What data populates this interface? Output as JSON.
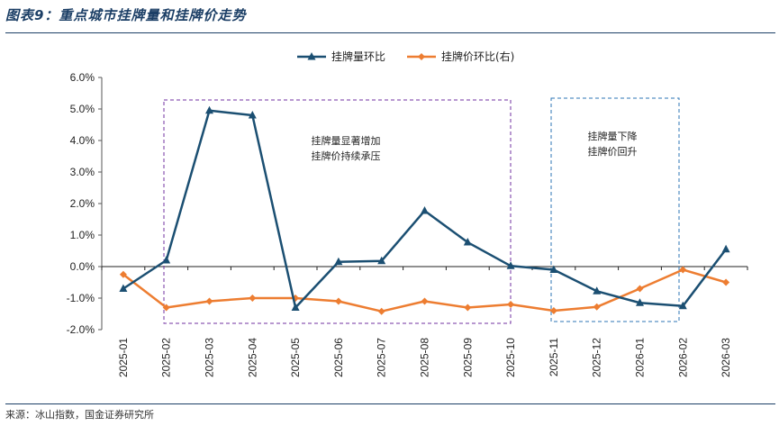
{
  "header": {
    "title": "图表9：重点城市挂牌量和挂牌价走势"
  },
  "footer": {
    "source": "来源：冰山指数，国金证券研究所"
  },
  "colors": {
    "primary": "#1c3f66",
    "series1": "#1b4f72",
    "series2": "#ed7d31",
    "box1": "#7030a0",
    "box2": "#2e75b6"
  },
  "chart_data": {
    "type": "line",
    "title": "",
    "categories": [
      "2025-01",
      "2025-02",
      "2025-03",
      "2025-04",
      "2025-05",
      "2025-06",
      "2025-07",
      "2025-08",
      "2025-09",
      "2025-10",
      "2025-11",
      "2025-12",
      "2026-01",
      "2026-02",
      "2026-03"
    ],
    "series": [
      {
        "name": "挂牌量环比",
        "axis": "left",
        "marker": "triangle",
        "values": [
          -0.7,
          0.2,
          4.95,
          4.8,
          -1.3,
          0.15,
          0.18,
          1.77,
          0.77,
          0.02,
          -0.1,
          -0.78,
          -1.15,
          -1.25,
          0.55
        ]
      },
      {
        "name": "挂牌价环比(右)",
        "axis": "right",
        "marker": "diamond",
        "values": [
          -0.25,
          -1.3,
          -1.1,
          -1.0,
          -1.0,
          -1.1,
          -1.42,
          -1.1,
          -1.3,
          -1.2,
          -1.4,
          -1.28,
          -0.7,
          -0.1,
          -0.5
        ]
      }
    ],
    "yticks": [
      "6.0%",
      "5.0%",
      "4.0%",
      "3.0%",
      "2.0%",
      "1.0%",
      "0.0%",
      "-1.0%",
      "-2.0%"
    ],
    "ylim": [
      -2.0,
      6.0
    ],
    "legend_position": "top-center",
    "annotations": [
      {
        "lines": [
          "挂牌量显著增加",
          "挂牌价持续承压"
        ],
        "from": "2025-02",
        "to": "2025-10",
        "style": "dashed-purple"
      },
      {
        "lines": [
          "挂牌量下降",
          "挂牌价回升"
        ],
        "from": "2025-11",
        "to": "2026-02",
        "style": "dashed-blue"
      }
    ]
  }
}
